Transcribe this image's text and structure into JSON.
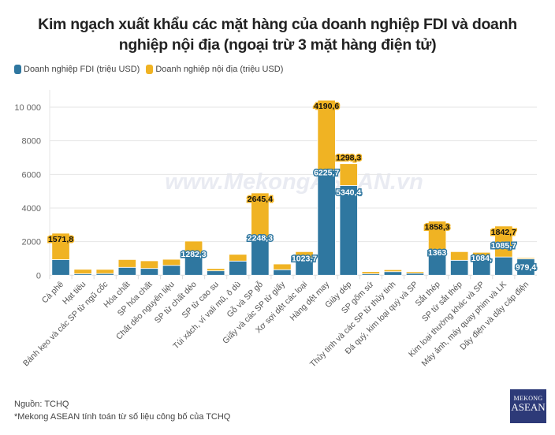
{
  "chart_data": {
    "type": "bar",
    "stacked": true,
    "title": "Kim ngạch xuất khẩu các mặt hàng của doanh nghiệp FDI và doanh nghiệp nội địa (ngoại trừ 3 mặt hàng điện tử)",
    "xlabel": "",
    "ylabel": "",
    "ylim": [
      0,
      10500
    ],
    "yticks": [
      0,
      2000,
      4000,
      6000,
      8000,
      10000
    ],
    "ytick_labels": [
      "0",
      "2000",
      "4000",
      "6000",
      "8000",
      "10 000"
    ],
    "grid": true,
    "legend_position": "top-left",
    "categories": [
      "Cà phê",
      "Hạt tiêu",
      "Bánh kẹo và các SP từ ngũ cốc",
      "Hóa chất",
      "SP hóa chất",
      "Chất dẻo nguyên liệu",
      "SP từ chất dẻo",
      "SP từ cao su",
      "Túi xách, ví vali mũ, ô dù",
      "Gỗ và SP gỗ",
      "Giấy và các SP từ giấy",
      "Xơ sợi dệt các loại",
      "Hàng dệt may",
      "Giày dép",
      "SP gốm sứ",
      "Thủy tinh và các SP từ thủy tinh",
      "Đá quý, kim loại quý và SP",
      "Sắt thép",
      "SP từ sắt thép",
      "Kim loại thường khác và SP",
      "Máy ảnh, máy quay phim và LK",
      "Dây điện và dây cáp điện"
    ],
    "series": [
      {
        "name": "Doanh nghiệp FDI (triệu USD)",
        "color": "#2f77a0",
        "values": [
          930,
          90,
          100,
          470,
          405,
          590,
          1282.3,
          265,
          845,
          2248.3,
          330,
          1023.7,
          6225.7,
          5340.4,
          90,
          215,
          120,
          1363,
          890,
          1084,
          1085.7,
          979.4
        ],
        "labels": [
          "",
          "",
          "",
          "",
          "",
          "",
          "1282,3",
          "",
          "",
          "2248,3",
          "",
          "1023,7",
          "6225,7",
          "5340,4",
          "",
          "",
          "",
          "1363",
          "",
          "1084,",
          "1085,7",
          "979,4"
        ]
      },
      {
        "name": "Doanh nghiệp nội địa (triệu USD)",
        "color": "#f0b323",
        "values": [
          1571.8,
          265,
          250,
          465,
          455,
          360,
          750,
          135,
          400,
          2645.4,
          340,
          380,
          4190.6,
          1298.3,
          125,
          115,
          95,
          1858.3,
          515,
          280,
          1842.7,
          65
        ],
        "labels": [
          "1571,8",
          "",
          "",
          "",
          "",
          "",
          "",
          "",
          "",
          "2645,4",
          "",
          "",
          "4190,6",
          "1298,3",
          "",
          "",
          "",
          "1858,3",
          "",
          "",
          "1842,7",
          ""
        ]
      }
    ]
  },
  "watermark": "www.MekongASEAN.vn",
  "footer": {
    "source": "Nguồn: TCHQ",
    "note": "*Mekong ASEAN tính toán từ số liệu công bố của TCHQ"
  },
  "logo": {
    "line1": "MEKONG",
    "line2": "ASEAN"
  }
}
